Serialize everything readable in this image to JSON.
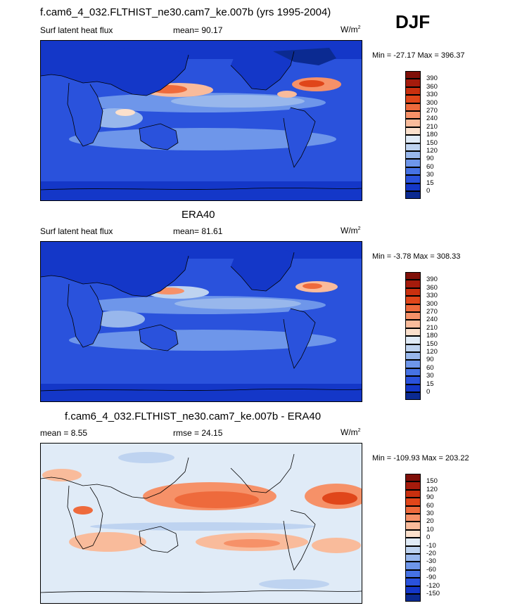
{
  "season_label": "DJF",
  "units": "W/m",
  "units_sup": "2",
  "panels": [
    {
      "title": "f.cam6_4_032.FLTHIST_ne30.cam7_ke.007b (yrs 1995-2004)",
      "left_label": "Surf latent heat flux",
      "center_label": "mean=  90.17",
      "minmax": "Min = -27.17 Max = 396.37"
    },
    {
      "title": "ERA40",
      "left_label": "Surf latent heat flux",
      "center_label": "mean=  81.61",
      "minmax": "Min =  -3.78 Max = 308.33"
    },
    {
      "title": "f.cam6_4_032.FLTHIST_ne30.cam7_ke.007b - ERA40",
      "left_label": "mean =   8.55",
      "center_label": "rmse =  24.15",
      "minmax": "Min = -109.93 Max = 203.22"
    }
  ],
  "colorbars": {
    "abs": {
      "labels": [
        "390",
        "360",
        "330",
        "300",
        "270",
        "240",
        "210",
        "180",
        "150",
        "120",
        "90",
        "60",
        "30",
        "15",
        "0"
      ],
      "colors": [
        "#7f0f08",
        "#a51b0c",
        "#c9300f",
        "#e0461a",
        "#ee6a3c",
        "#f69168",
        "#f9bb9b",
        "#fbe0cc",
        "#e0ebf7",
        "#bed3f0",
        "#98b7ec",
        "#6e96ea",
        "#4672e4",
        "#2a52dc",
        "#1437c8",
        "#0b2a91"
      ]
    },
    "diff": {
      "labels": [
        "150",
        "120",
        "90",
        "60",
        "30",
        "20",
        "10",
        "0",
        "-10",
        "-20",
        "-30",
        "-60",
        "-90",
        "-120",
        "-150"
      ],
      "colors": [
        "#7f0f08",
        "#a51b0c",
        "#c9300f",
        "#e0461a",
        "#ee6a3c",
        "#f69168",
        "#f9bb9b",
        "#fbe0cc",
        "#e0ebf7",
        "#bed3f0",
        "#98b7ec",
        "#6e96ea",
        "#4672e4",
        "#2a52dc",
        "#1437c8",
        "#0b2a91"
      ]
    }
  },
  "chart_data": [
    {
      "type": "heatmap",
      "title": "f.cam6_4_032.FLTHIST_ne30.cam7_ke.007b (yrs 1995-2004)",
      "field": "Surf latent heat flux",
      "season": "DJF",
      "units": "W/m2",
      "mean": 90.17,
      "min": -27.17,
      "max": 396.37,
      "contour_levels": [
        0,
        15,
        30,
        60,
        90,
        120,
        150,
        180,
        210,
        240,
        270,
        300,
        330,
        360,
        390
      ]
    },
    {
      "type": "heatmap",
      "title": "ERA40",
      "field": "Surf latent heat flux",
      "season": "DJF",
      "units": "W/m2",
      "mean": 81.61,
      "min": -3.78,
      "max": 308.33,
      "contour_levels": [
        0,
        15,
        30,
        60,
        90,
        120,
        150,
        180,
        210,
        240,
        270,
        300,
        330,
        360,
        390
      ]
    },
    {
      "type": "heatmap",
      "title": "f.cam6_4_032.FLTHIST_ne30.cam7_ke.007b - ERA40",
      "season": "DJF",
      "units": "W/m2",
      "mean": 8.55,
      "rmse": 24.15,
      "min": -109.93,
      "max": 203.22,
      "contour_levels": [
        -150,
        -120,
        -90,
        -60,
        -30,
        -20,
        -10,
        0,
        10,
        20,
        30,
        60,
        90,
        120,
        150
      ]
    }
  ]
}
